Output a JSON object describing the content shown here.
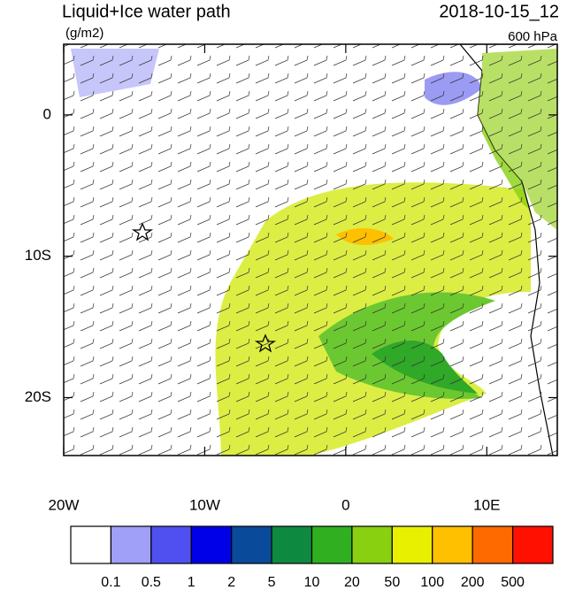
{
  "header": {
    "title": "Liquid+Ice water path",
    "time": "2018-10-15_12",
    "units": "(g/m2)",
    "level": "600 hPa"
  },
  "map": {
    "lon_range": [
      -20,
      15
    ],
    "lat_range": [
      -24.1,
      5
    ],
    "lon_ticks": [
      {
        "value": -20,
        "label": "20W"
      },
      {
        "value": -10,
        "label": "10W"
      },
      {
        "value": 0,
        "label": "0"
      },
      {
        "value": 10,
        "label": "10E"
      }
    ],
    "lat_ticks": [
      {
        "value": 0,
        "label": "0"
      },
      {
        "value": -10,
        "label": "10S"
      },
      {
        "value": -20,
        "label": "20S"
      }
    ]
  },
  "colorbar": {
    "colors": [
      "#ffffff",
      "#a0a0f8",
      "#5050f0",
      "#0000e8",
      "#0a4a9a",
      "#0e8a40",
      "#30b020",
      "#88d010",
      "#e8f000",
      "#ffc000",
      "#ff6a00",
      "#ff1000"
    ],
    "labels": [
      "0.1",
      "0.5",
      "1",
      "2",
      "5",
      "10",
      "20",
      "50",
      "100",
      "200",
      "500"
    ]
  }
}
